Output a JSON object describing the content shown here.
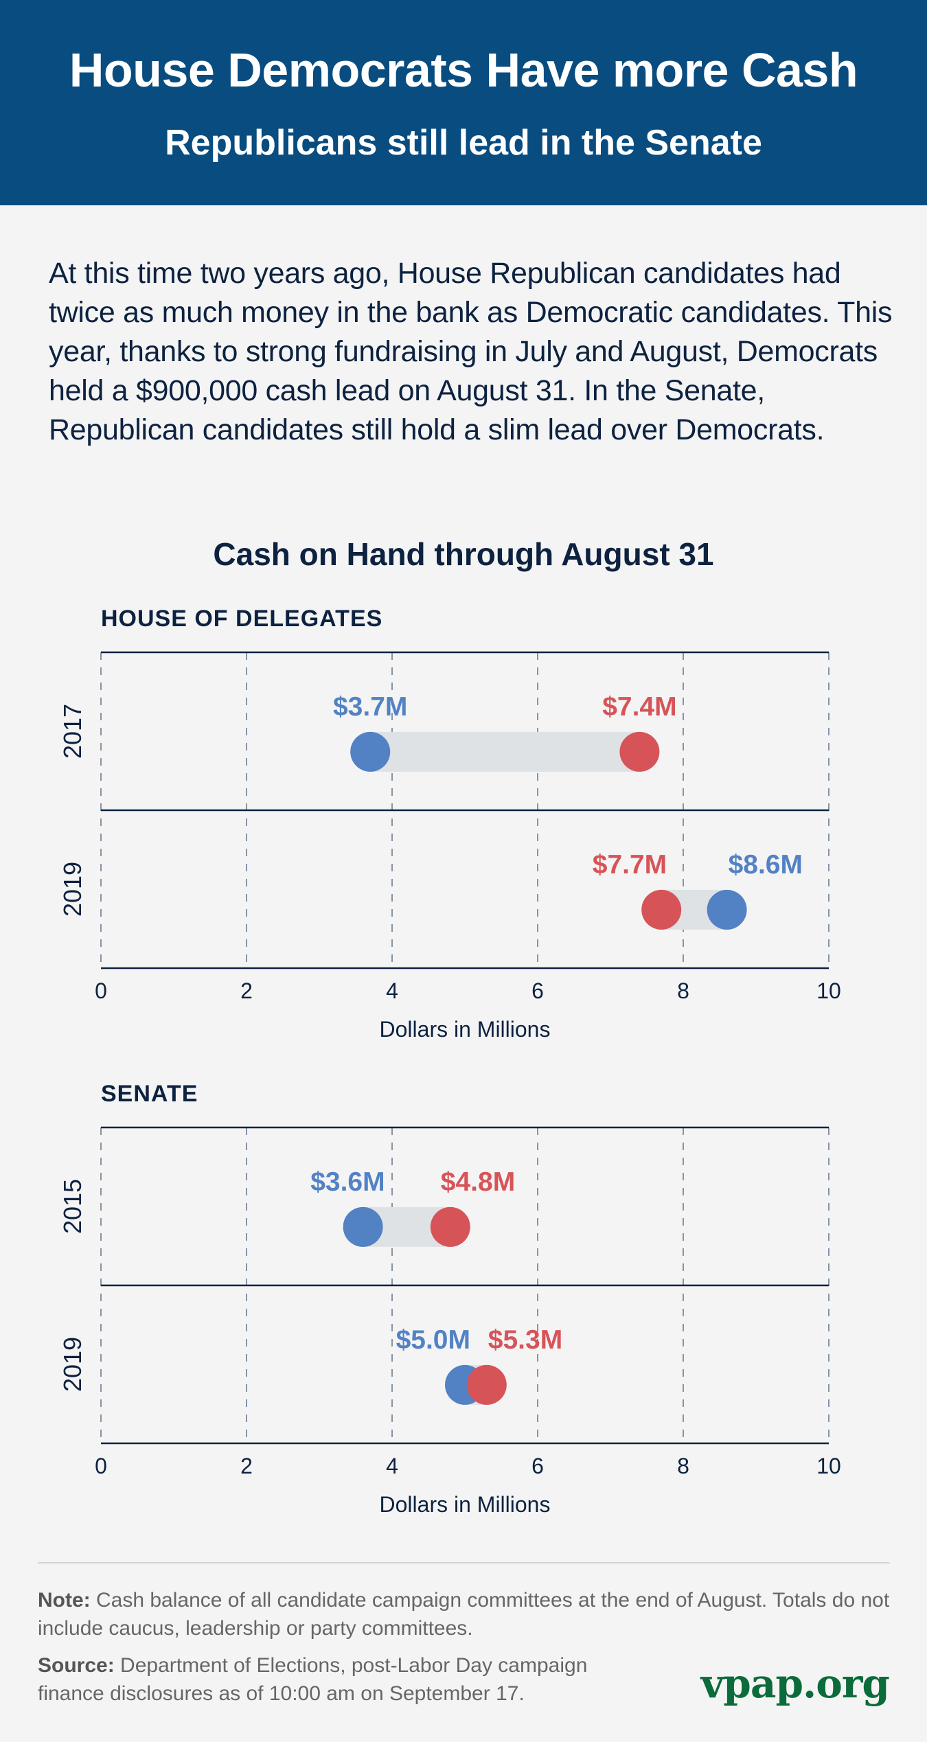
{
  "header": {
    "title": "House Democrats Have more Cash",
    "subtitle": "Republicans still lead in the Senate"
  },
  "intro": "At this time two years ago, House Republican candidates had twice as much money in the bank as Democratic candidates. This year, thanks to strong fundraising in July and August, Democrats held a $900,000 cash lead on August 31. In the Senate, Republican candidates still hold a slim lead over Democrats.",
  "colors": {
    "header_bg": "#084c80",
    "democrat": "#5282c4",
    "republican": "#d65458",
    "connector": "#dfe2e5",
    "logo": "#0b6b3a"
  },
  "chart_data": {
    "type": "dumbbell",
    "title": "Cash on Hand through August 31",
    "panels": [
      {
        "label": "HOUSE OF DELEGATES",
        "xlabel": "Dollars in Millions",
        "xlim": [
          0,
          10
        ],
        "xticks": [
          "0",
          "2",
          "4",
          "6",
          "8",
          "10"
        ],
        "grid": true,
        "rows": [
          {
            "year": "2017",
            "dem": 3.7,
            "rep": 7.4,
            "dem_label": "$3.7M",
            "rep_label": "$7.4M"
          },
          {
            "year": "2019",
            "dem": 8.6,
            "rep": 7.7,
            "dem_label": "$8.6M",
            "rep_label": "$7.7M"
          }
        ]
      },
      {
        "label": "SENATE",
        "xlabel": "Dollars in Millions",
        "xlim": [
          0,
          10
        ],
        "xticks": [
          "0",
          "2",
          "4",
          "6",
          "8",
          "10"
        ],
        "grid": true,
        "rows": [
          {
            "year": "2015",
            "dem": 3.6,
            "rep": 4.8,
            "dem_label": "$3.6M",
            "rep_label": "$4.8M"
          },
          {
            "year": "2019",
            "dem": 5.0,
            "rep": 5.3,
            "dem_label": "$5.0M",
            "rep_label": "$5.3M"
          }
        ]
      }
    ]
  },
  "footer": {
    "note_label": "Note:",
    "note_text": " Cash balance of all candidate campaign committees at the end of August. Totals do not include caucus, leadership or party committees.",
    "source_label": "Source:",
    "source_text": " Department of Elections, post-Labor Day campaign finance disclosures as of 10:00 am on September 17.",
    "logo": "vpap.org"
  }
}
